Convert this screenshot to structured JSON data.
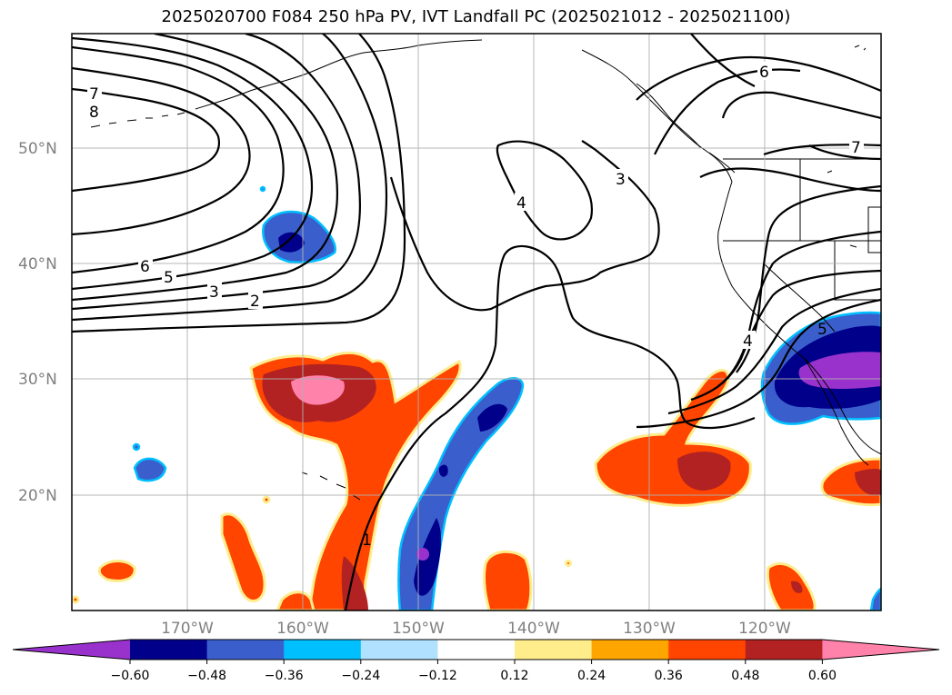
{
  "title": "2025020700 F084 250 hPa PV, IVT Landfall PC (2025021012 - 2025021100)",
  "map": {
    "lon_range": [
      -180,
      -110
    ],
    "lat_range": [
      10,
      60
    ],
    "lat_labels": [
      "20°N",
      "30°N",
      "40°N",
      "50°N"
    ],
    "lon_labels": [
      "170°W",
      "160°W",
      "150°W",
      "140°W",
      "130°W",
      "120°W"
    ],
    "gridlines": true
  },
  "contour_labels": [
    "7",
    "8",
    "6",
    "5",
    "3",
    "2",
    "4",
    "3",
    "6",
    "7",
    "4",
    "5",
    "1"
  ],
  "colorbar": {
    "ticks": [
      "−0.60",
      "−0.48",
      "−0.36",
      "−0.24",
      "−0.12",
      "0.12",
      "0.24",
      "0.36",
      "0.48",
      "0.60"
    ],
    "bounds": [
      -0.6,
      -0.48,
      -0.36,
      -0.24,
      -0.12,
      0.12,
      0.24,
      0.36,
      0.48,
      0.6
    ],
    "colors": [
      "#9932CC",
      "#00008B",
      "#3A5FCD",
      "#00BFFF",
      "#B0E2FF",
      "#FFFFFF",
      "#FFEC8B",
      "#FFA500",
      "#FF4500",
      "#B22222",
      "#FF82AB"
    ],
    "extend": "both"
  }
}
